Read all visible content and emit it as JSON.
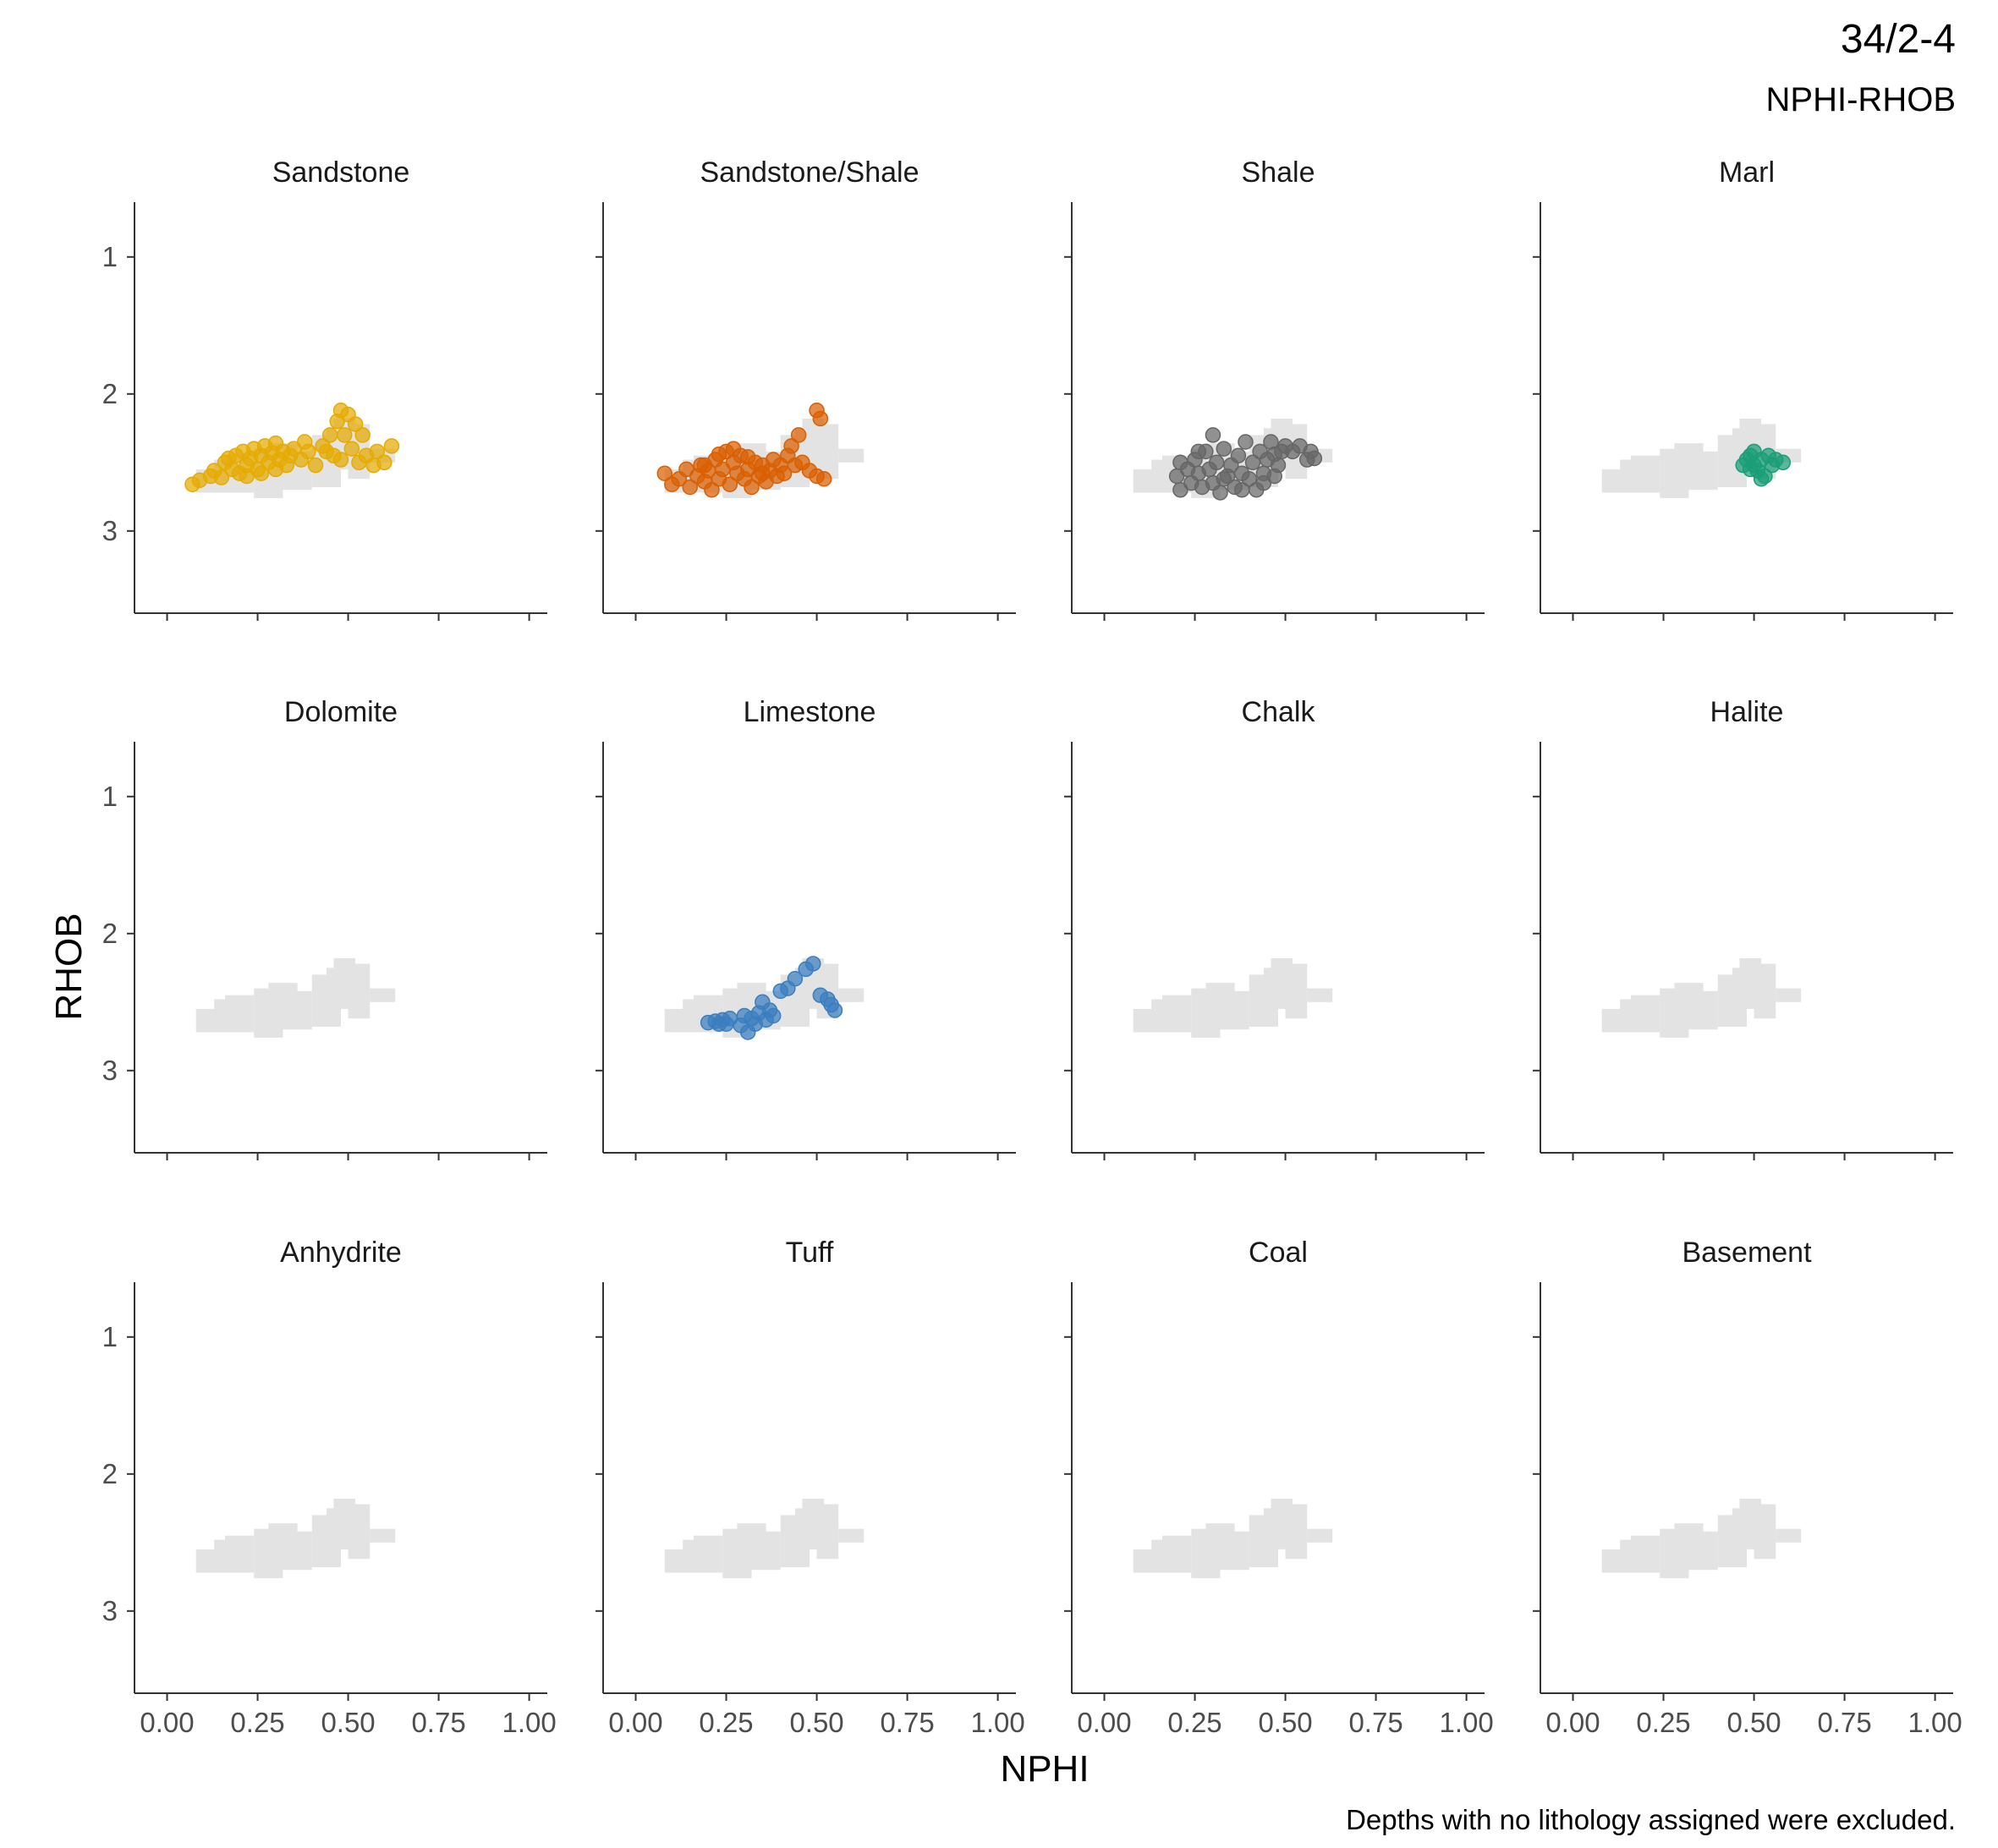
{
  "title": "34/2-4",
  "subtitle": "NPHI-RHOB",
  "caption": "Depths with no lithology assigned were excluded.",
  "chart_data": {
    "type": "scatter",
    "layout": "facet_wrap 3x4",
    "xlabel": "NPHI",
    "ylabel": "RHOB",
    "xlim": [
      -0.09,
      1.05
    ],
    "ylim": [
      3.6,
      0.6
    ],
    "y_reversed": true,
    "x_ticks": [
      0.0,
      0.25,
      0.5,
      0.75,
      1.0
    ],
    "x_tick_labels": [
      "0.00",
      "0.25",
      "0.50",
      "0.75",
      "1.00"
    ],
    "y_ticks": [
      1,
      2,
      3
    ],
    "y_tick_labels": [
      "1",
      "2",
      "3"
    ],
    "grid": false,
    "background_color": "#e3e3e3",
    "background_cells": [
      [
        0.08,
        0.16,
        2.55,
        2.72
      ],
      [
        0.16,
        0.24,
        2.45,
        2.72
      ],
      [
        0.24,
        0.32,
        2.4,
        2.76
      ],
      [
        0.32,
        0.4,
        2.42,
        2.7
      ],
      [
        0.4,
        0.48,
        2.3,
        2.68
      ],
      [
        0.46,
        0.52,
        2.18,
        2.55
      ],
      [
        0.5,
        0.56,
        2.22,
        2.62
      ],
      [
        0.56,
        0.63,
        2.4,
        2.5
      ],
      [
        0.13,
        0.2,
        2.48,
        2.6
      ],
      [
        0.28,
        0.36,
        2.36,
        2.48
      ],
      [
        0.44,
        0.5,
        2.25,
        2.4
      ]
    ],
    "panels": [
      {
        "name": "Sandstone",
        "color": "#E6AB02",
        "points": [
          [
            0.07,
            2.66
          ],
          [
            0.09,
            2.63
          ],
          [
            0.12,
            2.6
          ],
          [
            0.13,
            2.56
          ],
          [
            0.15,
            2.61
          ],
          [
            0.16,
            2.5
          ],
          [
            0.18,
            2.55
          ],
          [
            0.19,
            2.45
          ],
          [
            0.2,
            2.58
          ],
          [
            0.21,
            2.42
          ],
          [
            0.22,
            2.52
          ],
          [
            0.23,
            2.47
          ],
          [
            0.24,
            2.4
          ],
          [
            0.25,
            2.55
          ],
          [
            0.26,
            2.45
          ],
          [
            0.27,
            2.38
          ],
          [
            0.28,
            2.5
          ],
          [
            0.29,
            2.43
          ],
          [
            0.3,
            2.36
          ],
          [
            0.31,
            2.48
          ],
          [
            0.32,
            2.42
          ],
          [
            0.33,
            2.52
          ],
          [
            0.35,
            2.4
          ],
          [
            0.37,
            2.48
          ],
          [
            0.39,
            2.42
          ],
          [
            0.41,
            2.52
          ],
          [
            0.43,
            2.38
          ],
          [
            0.45,
            2.3
          ],
          [
            0.46,
            2.45
          ],
          [
            0.47,
            2.2
          ],
          [
            0.48,
            2.12
          ],
          [
            0.49,
            2.3
          ],
          [
            0.5,
            2.15
          ],
          [
            0.51,
            2.4
          ],
          [
            0.52,
            2.22
          ],
          [
            0.53,
            2.5
          ],
          [
            0.54,
            2.3
          ],
          [
            0.55,
            2.45
          ],
          [
            0.57,
            2.52
          ],
          [
            0.58,
            2.42
          ],
          [
            0.6,
            2.5
          ],
          [
            0.62,
            2.38
          ],
          [
            0.17,
            2.47
          ],
          [
            0.22,
            2.6
          ],
          [
            0.26,
            2.58
          ],
          [
            0.3,
            2.55
          ],
          [
            0.34,
            2.45
          ],
          [
            0.38,
            2.35
          ],
          [
            0.44,
            2.42
          ],
          [
            0.48,
            2.48
          ]
        ]
      },
      {
        "name": "Sandstone/Shale",
        "color": "#D95F02",
        "points": [
          [
            0.08,
            2.58
          ],
          [
            0.1,
            2.66
          ],
          [
            0.12,
            2.62
          ],
          [
            0.14,
            2.55
          ],
          [
            0.15,
            2.68
          ],
          [
            0.17,
            2.6
          ],
          [
            0.18,
            2.52
          ],
          [
            0.19,
            2.64
          ],
          [
            0.2,
            2.56
          ],
          [
            0.21,
            2.7
          ],
          [
            0.22,
            2.48
          ],
          [
            0.23,
            2.62
          ],
          [
            0.24,
            2.55
          ],
          [
            0.25,
            2.42
          ],
          [
            0.26,
            2.66
          ],
          [
            0.27,
            2.5
          ],
          [
            0.28,
            2.58
          ],
          [
            0.29,
            2.45
          ],
          [
            0.3,
            2.62
          ],
          [
            0.31,
            2.55
          ],
          [
            0.32,
            2.68
          ],
          [
            0.33,
            2.5
          ],
          [
            0.34,
            2.6
          ],
          [
            0.35,
            2.52
          ],
          [
            0.36,
            2.64
          ],
          [
            0.37,
            2.56
          ],
          [
            0.38,
            2.48
          ],
          [
            0.39,
            2.6
          ],
          [
            0.4,
            2.52
          ],
          [
            0.41,
            2.58
          ],
          [
            0.42,
            2.45
          ],
          [
            0.43,
            2.38
          ],
          [
            0.44,
            2.52
          ],
          [
            0.45,
            2.3
          ],
          [
            0.46,
            2.5
          ],
          [
            0.48,
            2.56
          ],
          [
            0.5,
            2.12
          ],
          [
            0.51,
            2.18
          ],
          [
            0.5,
            2.6
          ],
          [
            0.52,
            2.62
          ],
          [
            0.19,
            2.52
          ],
          [
            0.23,
            2.44
          ],
          [
            0.27,
            2.4
          ],
          [
            0.31,
            2.46
          ],
          [
            0.35,
            2.58
          ]
        ]
      },
      {
        "name": "Shale",
        "color": "#666666",
        "points": [
          [
            0.2,
            2.6
          ],
          [
            0.21,
            2.5
          ],
          [
            0.21,
            2.7
          ],
          [
            0.23,
            2.55
          ],
          [
            0.24,
            2.65
          ],
          [
            0.25,
            2.48
          ],
          [
            0.26,
            2.58
          ],
          [
            0.27,
            2.68
          ],
          [
            0.28,
            2.42
          ],
          [
            0.29,
            2.55
          ],
          [
            0.3,
            2.3
          ],
          [
            0.3,
            2.65
          ],
          [
            0.31,
            2.5
          ],
          [
            0.32,
            2.72
          ],
          [
            0.33,
            2.4
          ],
          [
            0.34,
            2.6
          ],
          [
            0.35,
            2.52
          ],
          [
            0.36,
            2.68
          ],
          [
            0.37,
            2.45
          ],
          [
            0.38,
            2.58
          ],
          [
            0.39,
            2.35
          ],
          [
            0.4,
            2.62
          ],
          [
            0.41,
            2.5
          ],
          [
            0.42,
            2.7
          ],
          [
            0.43,
            2.42
          ],
          [
            0.44,
            2.58
          ],
          [
            0.45,
            2.48
          ],
          [
            0.46,
            2.35
          ],
          [
            0.47,
            2.6
          ],
          [
            0.48,
            2.52
          ],
          [
            0.49,
            2.42
          ],
          [
            0.5,
            2.38
          ],
          [
            0.52,
            2.42
          ],
          [
            0.54,
            2.38
          ],
          [
            0.56,
            2.48
          ],
          [
            0.57,
            2.42
          ],
          [
            0.58,
            2.47
          ],
          [
            0.26,
            2.42
          ],
          [
            0.33,
            2.62
          ],
          [
            0.38,
            2.7
          ],
          [
            0.44,
            2.65
          ],
          [
            0.47,
            2.44
          ]
        ]
      },
      {
        "name": "Marl",
        "color": "#1B9E77",
        "points": [
          [
            0.47,
            2.52
          ],
          [
            0.48,
            2.48
          ],
          [
            0.49,
            2.45
          ],
          [
            0.5,
            2.52
          ],
          [
            0.5,
            2.42
          ],
          [
            0.51,
            2.56
          ],
          [
            0.52,
            2.48
          ],
          [
            0.53,
            2.6
          ],
          [
            0.54,
            2.45
          ],
          [
            0.55,
            2.52
          ],
          [
            0.56,
            2.48
          ],
          [
            0.58,
            2.5
          ],
          [
            0.52,
            2.62
          ],
          [
            0.49,
            2.55
          ]
        ]
      },
      {
        "name": "Dolomite",
        "color": "#7570B3",
        "points": []
      },
      {
        "name": "Limestone",
        "color": "#3A7EBF",
        "points": [
          [
            0.2,
            2.65
          ],
          [
            0.22,
            2.64
          ],
          [
            0.23,
            2.66
          ],
          [
            0.24,
            2.63
          ],
          [
            0.25,
            2.66
          ],
          [
            0.26,
            2.62
          ],
          [
            0.29,
            2.67
          ],
          [
            0.3,
            2.6
          ],
          [
            0.31,
            2.72
          ],
          [
            0.32,
            2.62
          ],
          [
            0.33,
            2.66
          ],
          [
            0.34,
            2.58
          ],
          [
            0.35,
            2.5
          ],
          [
            0.36,
            2.63
          ],
          [
            0.37,
            2.56
          ],
          [
            0.38,
            2.6
          ],
          [
            0.4,
            2.42
          ],
          [
            0.42,
            2.4
          ],
          [
            0.44,
            2.33
          ],
          [
            0.47,
            2.26
          ],
          [
            0.49,
            2.22
          ],
          [
            0.51,
            2.45
          ],
          [
            0.53,
            2.48
          ],
          [
            0.54,
            2.52
          ],
          [
            0.55,
            2.56
          ]
        ]
      },
      {
        "name": "Chalk",
        "color": "#A6CEE3",
        "points": []
      },
      {
        "name": "Halite",
        "color": "#E7298A",
        "points": []
      },
      {
        "name": "Anhydrite",
        "color": "#66A61E",
        "points": []
      },
      {
        "name": "Tuff",
        "color": "#FF7F00",
        "points": []
      },
      {
        "name": "Coal",
        "color": "#000000",
        "points": []
      },
      {
        "name": "Basement",
        "color": "#E31A1C",
        "points": []
      }
    ]
  }
}
